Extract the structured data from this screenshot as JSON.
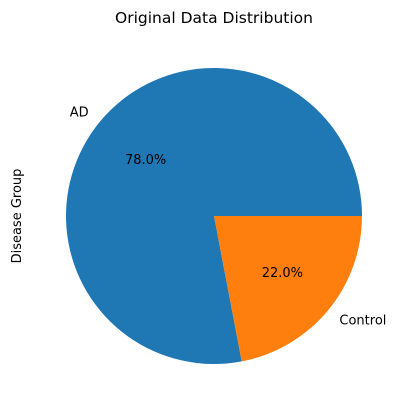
{
  "chart_data": {
    "type": "pie",
    "title": "Original Data Distribution",
    "ylabel": "Disease Group",
    "xlabel": "",
    "slices": [
      {
        "label": "AD",
        "value": 78.0,
        "pct_label": "78.0%",
        "color": "#1f77b4"
      },
      {
        "label": "Control",
        "value": 22.0,
        "pct_label": "22.0%",
        "color": "#ff7f0e"
      }
    ],
    "start_angle_deg": 0,
    "direction": "counterclockwise"
  }
}
